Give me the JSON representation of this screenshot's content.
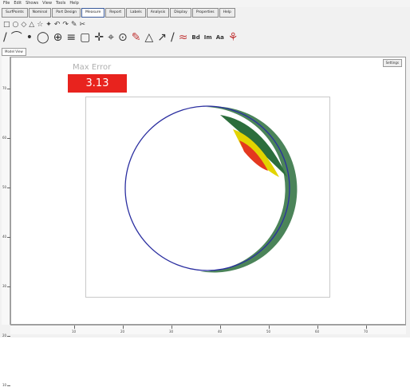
{
  "menu": [
    "File",
    "Edit",
    "Shows",
    "View",
    "Tools",
    "Help"
  ],
  "tabs": [
    "SurfPoints",
    "Nominal",
    "Part Design",
    "Measure",
    "Report",
    "Labels",
    "Analysis",
    "Display",
    "Properties",
    "Help"
  ],
  "active_tab": 3,
  "toolbar_row1": [
    "□",
    "○",
    "◇",
    "△",
    "☆",
    "✦",
    "↶",
    "↷",
    "✎",
    "✂"
  ],
  "toolbar_row2": [
    {
      "glyph": "/",
      "style": ""
    },
    {
      "glyph": "⌒",
      "style": ""
    },
    {
      "glyph": "•",
      "style": ""
    },
    {
      "glyph": "◯",
      "style": ""
    },
    {
      "glyph": "⊕",
      "style": ""
    },
    {
      "glyph": "≡",
      "style": ""
    },
    {
      "glyph": "▢",
      "style": ""
    },
    {
      "glyph": "✛",
      "style": ""
    },
    {
      "glyph": "⌖",
      "style": ""
    },
    {
      "glyph": "⊙",
      "style": ""
    },
    {
      "glyph": "✎",
      "style": "red"
    },
    {
      "glyph": "△",
      "style": ""
    },
    {
      "glyph": "↗",
      "style": ""
    },
    {
      "glyph": "/",
      "style": ""
    },
    {
      "glyph": "≈",
      "style": "red"
    },
    {
      "glyph": "Bd",
      "style": "txt"
    },
    {
      "glyph": "Im",
      "style": "txt"
    },
    {
      "glyph": "Aa",
      "style": "txt"
    },
    {
      "glyph": "⚘",
      "style": "red"
    }
  ],
  "document_tab": "Model View",
  "settings_label": "Settings",
  "max_error": {
    "label": "Max Error",
    "value": "3.13"
  },
  "colors": {
    "nominal": "#2b2fa0",
    "deviation": "#2c6e3c",
    "warn": "#e2d400",
    "error": "#e4381f",
    "error_box": "#e8231e"
  },
  "hruler_labels": [
    "10",
    "20",
    "30",
    "40",
    "50",
    "60",
    "70"
  ],
  "vruler_labels": [
    "70",
    "60",
    "50",
    "40",
    "30",
    "20",
    "10"
  ]
}
